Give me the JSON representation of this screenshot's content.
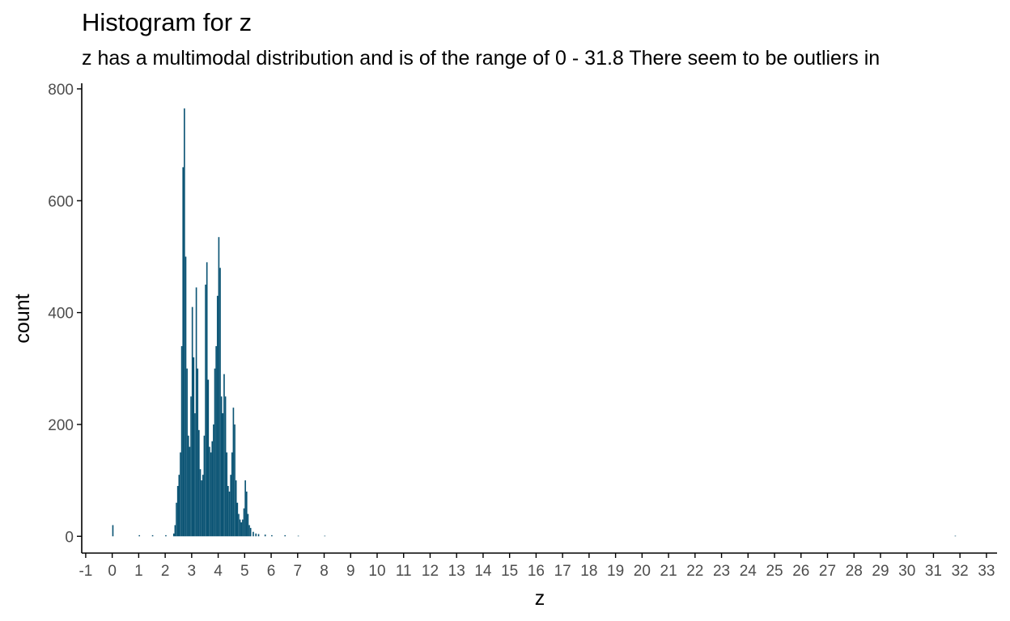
{
  "chart_data": {
    "type": "bar",
    "title": "Histogram for z",
    "subtitle": "z has a multimodal distribution and is of the range of 0 - 31.8 There seem to be outliers in",
    "xlabel": "z",
    "ylabel": "count",
    "xlim": [
      -1.15,
      33.4
    ],
    "ylim": [
      -30,
      810
    ],
    "x_ticks": [
      -1,
      0,
      1,
      2,
      3,
      4,
      5,
      6,
      7,
      8,
      9,
      10,
      11,
      12,
      13,
      14,
      15,
      16,
      17,
      18,
      19,
      20,
      21,
      22,
      23,
      24,
      25,
      26,
      27,
      28,
      29,
      30,
      31,
      32,
      33
    ],
    "y_ticks": [
      0,
      200,
      400,
      600,
      800
    ],
    "bar_color": "#0b5474",
    "grid": false,
    "legend": "none",
    "bins": [
      {
        "x": 0.0,
        "count": 20
      },
      {
        "x": 1.0,
        "count": 2
      },
      {
        "x": 1.5,
        "count": 2
      },
      {
        "x": 2.0,
        "count": 2
      },
      {
        "x": 2.3,
        "count": 5
      },
      {
        "x": 2.35,
        "count": 20
      },
      {
        "x": 2.4,
        "count": 60
      },
      {
        "x": 2.45,
        "count": 90
      },
      {
        "x": 2.5,
        "count": 110
      },
      {
        "x": 2.55,
        "count": 150
      },
      {
        "x": 2.6,
        "count": 340
      },
      {
        "x": 2.65,
        "count": 660
      },
      {
        "x": 2.7,
        "count": 765
      },
      {
        "x": 2.75,
        "count": 500
      },
      {
        "x": 2.8,
        "count": 300
      },
      {
        "x": 2.85,
        "count": 180
      },
      {
        "x": 2.9,
        "count": 160
      },
      {
        "x": 2.95,
        "count": 250
      },
      {
        "x": 3.0,
        "count": 410
      },
      {
        "x": 3.05,
        "count": 320
      },
      {
        "x": 3.1,
        "count": 220
      },
      {
        "x": 3.15,
        "count": 445
      },
      {
        "x": 3.2,
        "count": 300
      },
      {
        "x": 3.25,
        "count": 190
      },
      {
        "x": 3.3,
        "count": 120
      },
      {
        "x": 3.35,
        "count": 100
      },
      {
        "x": 3.4,
        "count": 110
      },
      {
        "x": 3.45,
        "count": 180
      },
      {
        "x": 3.5,
        "count": 450
      },
      {
        "x": 3.55,
        "count": 490
      },
      {
        "x": 3.6,
        "count": 280
      },
      {
        "x": 3.65,
        "count": 160
      },
      {
        "x": 3.7,
        "count": 150
      },
      {
        "x": 3.75,
        "count": 170
      },
      {
        "x": 3.8,
        "count": 200
      },
      {
        "x": 3.85,
        "count": 300
      },
      {
        "x": 3.9,
        "count": 340
      },
      {
        "x": 3.95,
        "count": 430
      },
      {
        "x": 4.0,
        "count": 535
      },
      {
        "x": 4.05,
        "count": 480
      },
      {
        "x": 4.1,
        "count": 250
      },
      {
        "x": 4.15,
        "count": 220
      },
      {
        "x": 4.2,
        "count": 290
      },
      {
        "x": 4.25,
        "count": 250
      },
      {
        "x": 4.3,
        "count": 150
      },
      {
        "x": 4.35,
        "count": 90
      },
      {
        "x": 4.4,
        "count": 80
      },
      {
        "x": 4.45,
        "count": 110
      },
      {
        "x": 4.5,
        "count": 150
      },
      {
        "x": 4.55,
        "count": 230
      },
      {
        "x": 4.6,
        "count": 200
      },
      {
        "x": 4.65,
        "count": 100
      },
      {
        "x": 4.7,
        "count": 60
      },
      {
        "x": 4.75,
        "count": 40
      },
      {
        "x": 4.8,
        "count": 30
      },
      {
        "x": 4.85,
        "count": 25
      },
      {
        "x": 4.9,
        "count": 30
      },
      {
        "x": 4.95,
        "count": 50
      },
      {
        "x": 5.0,
        "count": 100
      },
      {
        "x": 5.05,
        "count": 80
      },
      {
        "x": 5.1,
        "count": 40
      },
      {
        "x": 5.15,
        "count": 20
      },
      {
        "x": 5.2,
        "count": 15
      },
      {
        "x": 5.3,
        "count": 8
      },
      {
        "x": 5.4,
        "count": 5
      },
      {
        "x": 5.5,
        "count": 4
      },
      {
        "x": 5.75,
        "count": 3
      },
      {
        "x": 6.0,
        "count": 2
      },
      {
        "x": 6.5,
        "count": 2
      },
      {
        "x": 7.0,
        "count": 1
      },
      {
        "x": 8.0,
        "count": 1
      },
      {
        "x": 31.8,
        "count": 1
      }
    ]
  }
}
